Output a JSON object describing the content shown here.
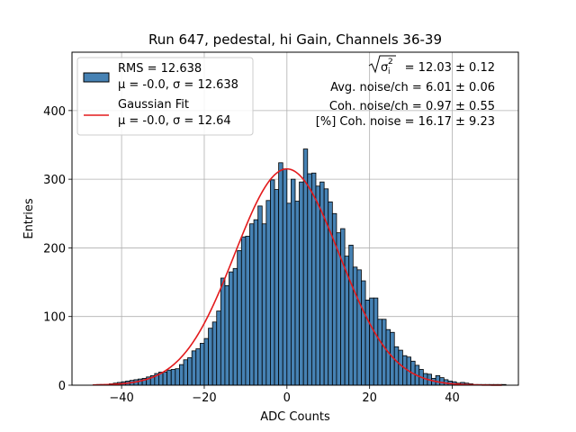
{
  "chart_data": {
    "type": "bar",
    "title": "Run 647, pedestal, hi Gain, Channels 36-39",
    "xlabel": "ADC Counts",
    "ylabel": "Entries",
    "xlim": [
      -52,
      56
    ],
    "ylim": [
      0,
      485
    ],
    "x_ticks": [
      -40,
      -20,
      0,
      20,
      40
    ],
    "x_tick_labels": [
      "−40",
      "−20",
      "0",
      "20",
      "40"
    ],
    "y_ticks": [
      0,
      100,
      200,
      300,
      400
    ],
    "y_tick_labels": [
      "0",
      "100",
      "200",
      "300",
      "400"
    ],
    "grid": true,
    "legend_position": "top-left",
    "bin_width": 1,
    "bin_edges_start": -46,
    "histogram": {
      "name": "RMS = 12.638",
      "name_line2": "μ = -0.0, σ = 12.638",
      "color": "#4682b4",
      "edge_color": "#000000",
      "values": [
        1,
        1,
        1,
        2,
        3,
        4,
        5,
        6,
        7,
        8,
        9,
        10,
        12,
        14,
        17,
        19,
        19,
        22,
        23,
        24,
        30,
        37,
        40,
        50,
        53,
        61,
        68,
        83,
        92,
        108,
        156,
        145,
        165,
        170,
        196,
        216,
        217,
        235,
        241,
        261,
        235,
        269,
        299,
        285,
        324,
        315,
        265,
        300,
        268,
        296,
        344,
        308,
        309,
        290,
        296,
        286,
        267,
        250,
        222,
        228,
        188,
        204,
        172,
        168,
        152,
        124,
        127,
        127,
        96,
        96,
        81,
        77,
        56,
        51,
        43,
        41,
        35,
        29,
        23,
        17,
        16,
        10,
        14,
        11,
        8,
        6,
        5,
        3,
        4,
        3,
        2,
        1,
        1,
        1,
        1,
        1,
        1,
        1,
        1
      ]
    },
    "fit": {
      "name": "Gaussian Fit",
      "name_line2": "μ = -0.0, σ = 12.64",
      "color": "#e31a1c",
      "mu": 0.0,
      "sigma": 12.64,
      "amplitude": 315,
      "x_range": [
        -47,
        52
      ]
    },
    "annotations": {
      "sqrt_label": "σ",
      "sqrt_sub": "i",
      "sqrt_sup": "2",
      "sqrt_value": " = 12.03 ± 0.12",
      "line2": "Avg. noise/ch = 6.01 ± 0.06",
      "line3": "Coh. noise/ch = 0.97 ± 0.55",
      "line4": "[%] Coh. noise = 16.17 ± 9.23"
    }
  }
}
